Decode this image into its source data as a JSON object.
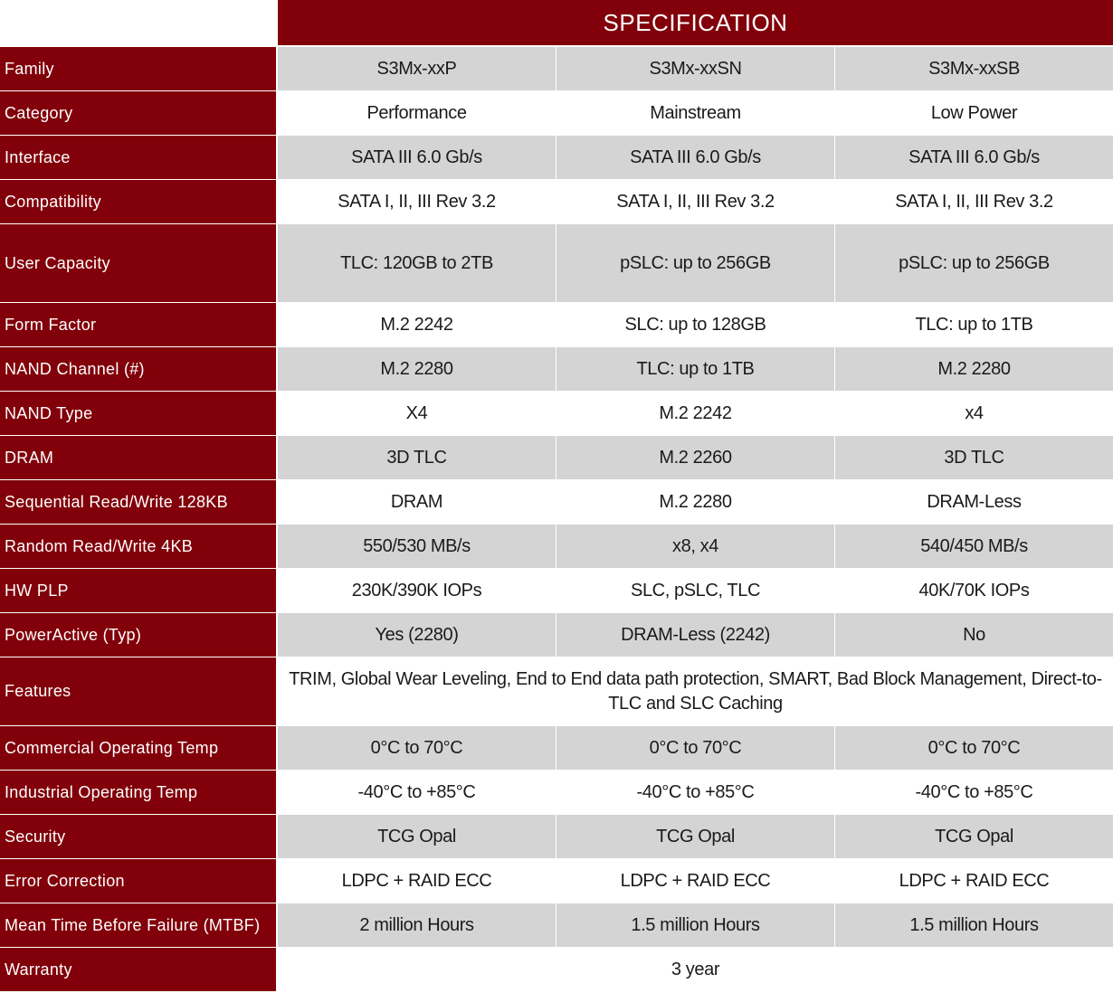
{
  "header": {
    "title": "SPECIFICATION"
  },
  "rows": [
    {
      "label": "Family",
      "cells": [
        "S3Mx-xxP",
        "S3Mx-xxSN",
        "S3Mx-xxSB"
      ]
    },
    {
      "label": "Category",
      "cells": [
        "Performance",
        "Mainstream",
        "Low Power"
      ]
    },
    {
      "label": "Interface",
      "cells": [
        "SATA III 6.0 Gb/s",
        "SATA III 6.0 Gb/s",
        "SATA III 6.0 Gb/s"
      ]
    },
    {
      "label": "Compatibility",
      "cells": [
        "SATA I, II, III Rev 3.2",
        "SATA I, II, III Rev 3.2",
        "SATA I, II, III Rev 3.2"
      ]
    },
    {
      "label": "User Capacity",
      "cells": [
        "TLC: 120GB to 2TB",
        "pSLC: up to 256GB",
        "pSLC: up to 256GB"
      ]
    },
    {
      "label": "Form Factor",
      "cells": [
        "M.2 2242",
        "SLC: up to 128GB",
        "TLC: up to 1TB"
      ]
    },
    {
      "label": "NAND Channel (#)",
      "cells": [
        "M.2 2280",
        "TLC: up to 1TB",
        "M.2 2280"
      ]
    },
    {
      "label": "NAND Type",
      "cells": [
        "X4",
        "M.2 2242",
        "x4"
      ]
    },
    {
      "label": "DRAM",
      "cells": [
        "3D TLC",
        "M.2 2260",
        "3D TLC"
      ]
    },
    {
      "label": "Sequential Read/Write 128KB",
      "cells": [
        "DRAM",
        "M.2 2280",
        "DRAM-Less"
      ]
    },
    {
      "label": "Random Read/Write 4KB",
      "cells": [
        "550/530 MB/s",
        "x8, x4",
        "540/450 MB/s"
      ]
    },
    {
      "label": "HW PLP",
      "cells": [
        "230K/390K IOPs",
        "SLC, pSLC, TLC",
        "40K/70K IOPs"
      ]
    },
    {
      "label": "PowerActive (Typ)",
      "cells": [
        "Yes (2280)",
        "DRAM-Less (2242)",
        "No"
      ]
    },
    {
      "label": "Features",
      "cells": [
        "TRIM, Global Wear Leveling, End to End data path protection, SMART, Bad Block Management, Direct-to-TLC and SLC Caching"
      ]
    },
    {
      "label": "Commercial Operating Temp",
      "cells": [
        "0°C to 70°C",
        "0°C to 70°C",
        "0°C to 70°C"
      ]
    },
    {
      "label": "Industrial Operating Temp",
      "cells": [
        "-40°C to +85°C",
        "-40°C to +85°C",
        "-40°C to +85°C"
      ]
    },
    {
      "label": "Security",
      "cells": [
        "TCG Opal",
        "TCG Opal",
        "TCG Opal"
      ]
    },
    {
      "label": "Error Correction",
      "cells": [
        "LDPC + RAID ECC",
        "LDPC + RAID ECC",
        "LDPC + RAID ECC"
      ]
    },
    {
      "label": "Mean Time Before Failure (MTBF)",
      "cells": [
        "2 million Hours",
        "1.5 million Hours",
        "1.5 million Hours"
      ]
    },
    {
      "label": "Warranty",
      "cells": [
        "3 year"
      ]
    }
  ]
}
